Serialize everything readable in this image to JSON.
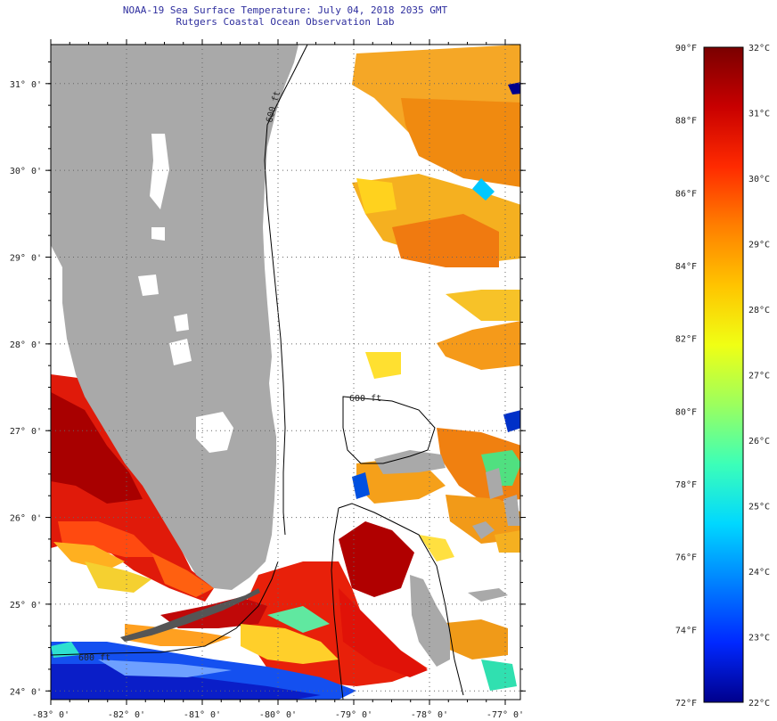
{
  "title": "NOAA-19 Sea Surface Temperature:  July 04, 2018 2035 GMT",
  "subtitle": "Rutgers Coastal Ocean Observation Lab",
  "map": {
    "lon_range": [
      -83,
      -76.8
    ],
    "lat_range": [
      23.9,
      31.45
    ],
    "lon_ticks": [
      {
        "value": -83,
        "label": "-83° 0'"
      },
      {
        "value": -82,
        "label": "-82° 0'"
      },
      {
        "value": -81,
        "label": "-81° 0'"
      },
      {
        "value": -80,
        "label": "-80° 0'"
      },
      {
        "value": -79,
        "label": "-79° 0'"
      },
      {
        "value": -78,
        "label": "-78° 0'"
      },
      {
        "value": -77,
        "label": "-77° 0'"
      }
    ],
    "lat_ticks": [
      {
        "value": 31,
        "label": "31° 0'"
      },
      {
        "value": 30,
        "label": "30° 0'"
      },
      {
        "value": 29,
        "label": "29° 0'"
      },
      {
        "value": 28,
        "label": "28° 0'"
      },
      {
        "value": 27,
        "label": "27° 0'"
      },
      {
        "value": 26,
        "label": "26° 0'"
      },
      {
        "value": 25,
        "label": "25° 0'"
      },
      {
        "value": 24,
        "label": "24° 0'"
      }
    ],
    "contour_labels": [
      "600 ft",
      "600 ft",
      "600 ft"
    ],
    "colors": {
      "land": "#a9a9a9",
      "no_data": "#ffffff",
      "contour": "#000000"
    }
  },
  "colorbar": {
    "fahrenheit": [
      "90°F",
      "88°F",
      "86°F",
      "84°F",
      "82°F",
      "80°F",
      "78°F",
      "76°F",
      "74°F",
      "72°F"
    ],
    "celsius": [
      "32°C",
      "31°C",
      "30°C",
      "29°C",
      "28°C",
      "27°C",
      "26°C",
      "25°C",
      "24°C",
      "23°C",
      "22°C"
    ],
    "gradient_colors": [
      "#7a0000",
      "#c80000",
      "#ff2a00",
      "#ff7f00",
      "#ffc400",
      "#f0ff14",
      "#9cff5e",
      "#3cffb8",
      "#00d8ff",
      "#0080ff",
      "#0028ff",
      "#00008c"
    ]
  }
}
